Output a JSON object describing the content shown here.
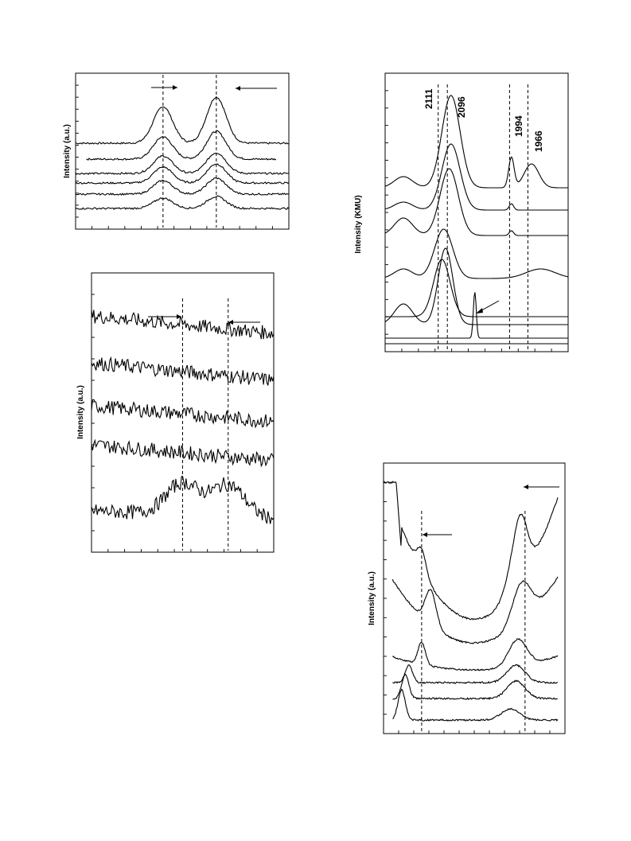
{
  "chart_data": [
    {
      "id": "panel-a",
      "type": "line",
      "ylabel": "Intensity (a.u.)",
      "series": [
        {
          "peaks": [
            0.41,
            0.66
          ],
          "amps": [
            46,
            58
          ],
          "offset": 96
        },
        {
          "peaks": [
            0.41,
            0.66
          ],
          "amps": [
            28,
            35
          ],
          "offset": 76,
          "xstart": 0.05,
          "xend": 0.94
        },
        {
          "peaks": [
            0.41,
            0.66
          ],
          "amps": [
            22,
            26
          ],
          "offset": 58
        },
        {
          "peaks": [
            0.41,
            0.66
          ],
          "amps": [
            20,
            24
          ],
          "offset": 46
        },
        {
          "peaks": [
            0.41,
            0.66
          ],
          "amps": [
            17,
            20
          ],
          "offset": 32
        },
        {
          "peaks": [
            0.41,
            0.66
          ],
          "amps": [
            13,
            15
          ],
          "offset": 14
        }
      ],
      "markers": [
        0.41,
        0.66
      ]
    },
    {
      "id": "panel-b",
      "type": "line",
      "ylabel": "Intensity (a.u.)",
      "series": [
        {
          "peaks": [],
          "amps": [],
          "offset": 285,
          "slope": -22,
          "noise": 9
        },
        {
          "peaks": [],
          "amps": [],
          "offset": 226,
          "slope": -22,
          "noise": 9
        },
        {
          "peaks": [],
          "amps": [],
          "offset": 172,
          "slope": -20,
          "noise": 9
        },
        {
          "peaks": [],
          "amps": [],
          "offset": 123,
          "slope": -20,
          "noise": 9
        },
        {
          "peaks": [
            0.5,
            0.75
          ],
          "amps": [
            40,
            40
          ],
          "offset": 40,
          "slope": -10,
          "noise": 9
        }
      ],
      "markers": [
        0.5,
        0.75
      ]
    },
    {
      "id": "panel-c",
      "type": "line",
      "ylabel": "Intensity (KMU)",
      "peak_labels": [
        "2111",
        "2096",
        "1994",
        "1966"
      ],
      "markers": [
        0.29,
        0.34,
        0.68,
        0.78
      ]
    },
    {
      "id": "panel-d",
      "type": "line",
      "ylabel": "Intensity (a.u.)",
      "markers": [
        0.21,
        0.78
      ]
    }
  ]
}
